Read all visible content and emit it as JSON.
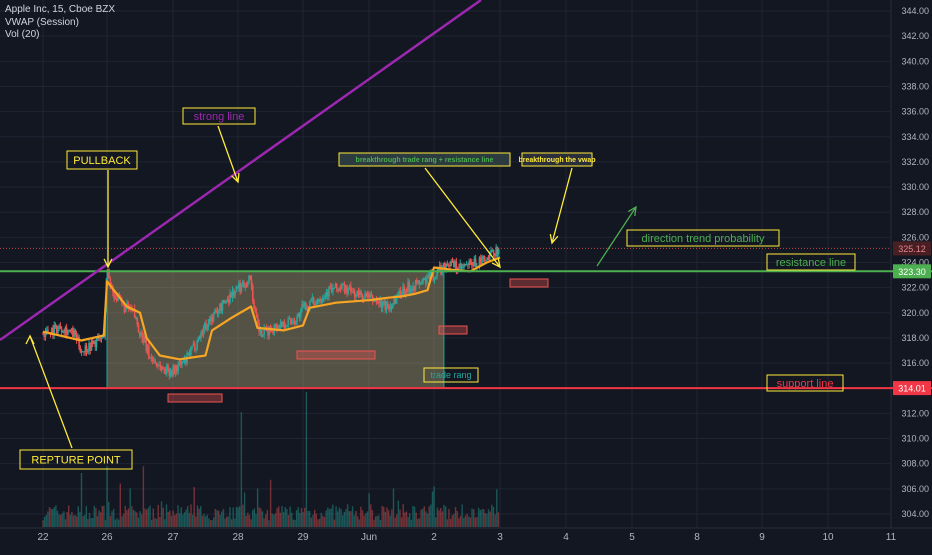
{
  "legend": {
    "symbol": "Apple Inc, 15, Cboe BZX",
    "indicator_vwap": "VWAP (Session)",
    "indicator_vol": "Vol (20)"
  },
  "colors": {
    "background": "#131722",
    "grid": "#1f2433",
    "axis_text": "#b2b5be",
    "candle_up": "#26a69a",
    "candle_down": "#ef5350",
    "vwap": "#f6a623",
    "trend_line": "#9c27b0",
    "resistance": "#4caf50",
    "support": "#f23645",
    "annotation_yellow": "#ffeb3b",
    "annotation_green": "#4caf50",
    "box_fill": "rgba(255,235,160,0.28)",
    "box_border": "#26a69a"
  },
  "chart_data": {
    "type": "candlestick",
    "x_tick_labels": [
      "22",
      "26",
      "27",
      "28",
      "29",
      "Jun",
      "2",
      "3",
      "4",
      "5",
      "8",
      "9",
      "10",
      "11"
    ],
    "y_ticks": [
      304,
      306,
      308,
      310,
      312,
      314,
      316,
      318,
      320,
      322,
      324,
      326,
      328,
      330,
      332,
      334,
      336,
      338,
      340,
      342,
      344
    ],
    "y_tick_labels": [
      "304.00",
      "306.00",
      "308.00",
      "310.00",
      "312.00",
      "314.00",
      "316.00",
      "318.00",
      "320.00",
      "322.00",
      "324.00",
      "326.00",
      "328.00",
      "330.00",
      "332.00",
      "334.00",
      "336.00",
      "338.00",
      "340.00",
      "342.00",
      "344.00"
    ],
    "ylim": [
      303.6,
      344.4
    ],
    "price_labels": [
      {
        "value": 325.12,
        "text": "325.12",
        "kind": "last"
      },
      {
        "value": 323.3,
        "text": "323.30",
        "kind": "resistance"
      },
      {
        "value": 314.01,
        "text": "314.01",
        "kind": "support"
      }
    ],
    "close_series": [
      {
        "t": 0,
        "p": 318.4
      },
      {
        "t": 0.3,
        "p": 318.9
      },
      {
        "t": 0.5,
        "p": 318.2
      },
      {
        "t": 0.6,
        "p": 317.0
      },
      {
        "t": 0.8,
        "p": 317.6
      },
      {
        "t": 0.95,
        "p": 318.1
      },
      {
        "t": 1.0,
        "p": 323.4
      },
      {
        "t": 1.1,
        "p": 321.5
      },
      {
        "t": 1.25,
        "p": 320.5
      },
      {
        "t": 1.4,
        "p": 320.0
      },
      {
        "t": 1.5,
        "p": 318.5
      },
      {
        "t": 1.65,
        "p": 316.5
      },
      {
        "t": 1.85,
        "p": 315.5
      },
      {
        "t": 2.0,
        "p": 315.4
      },
      {
        "t": 2.2,
        "p": 316.2
      },
      {
        "t": 2.5,
        "p": 319.0
      },
      {
        "t": 2.9,
        "p": 321.5
      },
      {
        "t": 3.2,
        "p": 322.8
      },
      {
        "t": 3.25,
        "p": 320.0
      },
      {
        "t": 3.35,
        "p": 318.2
      },
      {
        "t": 3.6,
        "p": 319.0
      },
      {
        "t": 3.9,
        "p": 319.5
      },
      {
        "t": 4.0,
        "p": 320.4
      },
      {
        "t": 4.2,
        "p": 321.0
      },
      {
        "t": 4.4,
        "p": 321.8
      },
      {
        "t": 4.6,
        "p": 322.0
      },
      {
        "t": 4.8,
        "p": 321.5
      },
      {
        "t": 5.1,
        "p": 321.0
      },
      {
        "t": 5.3,
        "p": 320.4
      },
      {
        "t": 5.5,
        "p": 321.8
      },
      {
        "t": 5.8,
        "p": 322.4
      },
      {
        "t": 6.0,
        "p": 323.0
      },
      {
        "t": 6.2,
        "p": 324.0
      },
      {
        "t": 6.4,
        "p": 323.5
      },
      {
        "t": 6.6,
        "p": 323.9
      },
      {
        "t": 6.8,
        "p": 324.2
      },
      {
        "t": 7.0,
        "p": 325.3
      }
    ],
    "vwap": [
      {
        "t": 0,
        "p": 318.5
      },
      {
        "t": 0.6,
        "p": 317.8
      },
      {
        "t": 0.95,
        "p": 318.2
      },
      {
        "t": 1.0,
        "p": 322.5
      },
      {
        "t": 1.3,
        "p": 320.5
      },
      {
        "t": 1.5,
        "p": 320.0
      },
      {
        "t": 1.6,
        "p": 318.0
      },
      {
        "t": 1.8,
        "p": 316.6
      },
      {
        "t": 2.1,
        "p": 316.3
      },
      {
        "t": 2.5,
        "p": 316.6
      },
      {
        "t": 2.6,
        "p": 318.6
      },
      {
        "t": 2.9,
        "p": 319.6
      },
      {
        "t": 3.2,
        "p": 320.5
      },
      {
        "t": 3.3,
        "p": 318.8
      },
      {
        "t": 3.7,
        "p": 318.6
      },
      {
        "t": 4.0,
        "p": 319.0
      },
      {
        "t": 4.1,
        "p": 320.4
      },
      {
        "t": 4.5,
        "p": 320.8
      },
      {
        "t": 5.0,
        "p": 321.0
      },
      {
        "t": 5.3,
        "p": 321.2
      },
      {
        "t": 5.5,
        "p": 321.3
      },
      {
        "t": 5.7,
        "p": 321.5
      },
      {
        "t": 5.9,
        "p": 321.8
      },
      {
        "t": 6.0,
        "p": 323.6
      },
      {
        "t": 6.3,
        "p": 323.4
      },
      {
        "t": 6.55,
        "p": 323.3
      },
      {
        "t": 6.8,
        "p": 324.0
      },
      {
        "t": 7.0,
        "p": 324.4
      }
    ],
    "volume_spikes": [
      {
        "t": 0.6,
        "v": 0.4
      },
      {
        "t": 1.0,
        "v": 0.45
      },
      {
        "t": 1.55,
        "v": 0.45
      },
      {
        "t": 3.05,
        "v": 0.85
      },
      {
        "t": 4.05,
        "v": 1.0
      },
      {
        "t": 3.5,
        "v": 0.35
      },
      {
        "t": 6.0,
        "v": 0.3
      },
      {
        "t": 6.95,
        "v": 0.28
      }
    ],
    "lines": {
      "resistance": 323.3,
      "support": 314.01,
      "trade_range": {
        "t0": 1.0,
        "t1": 6.15,
        "top": 323.3,
        "bottom": 314.01
      }
    },
    "annotations": {
      "strong_line": "strong line",
      "pullback": "PULLBACK",
      "repture_point": "REPTURE POINT",
      "breakthrough_range": "breakthrough trade rang + resistance line",
      "breakthrough_vwap": "breakthrough the vwap",
      "direction": "direction trend probability",
      "resistance_line": "resistance line",
      "support_line": "support line",
      "trade_range": "trade rang"
    }
  }
}
